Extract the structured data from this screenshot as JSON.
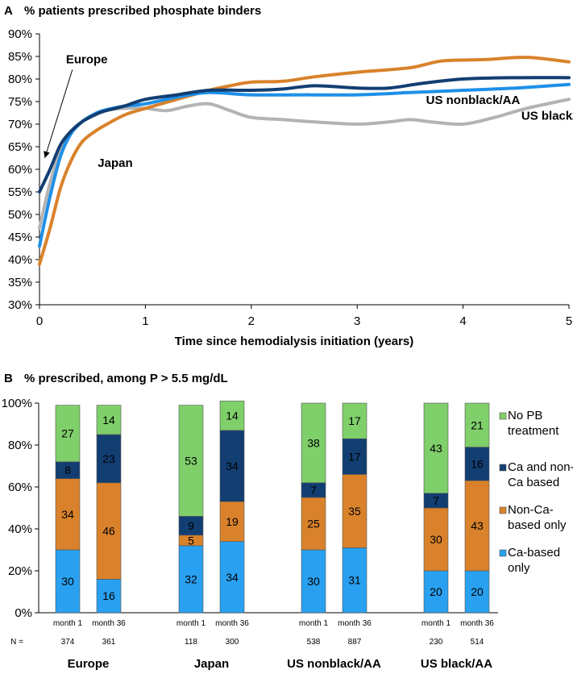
{
  "chart_data": [
    {
      "type": "line",
      "panel": "A",
      "title": "% patients prescribed phosphate binders",
      "xlabel": "Time since hemodialysis initiation (years)",
      "ylabel": "",
      "xlim": [
        0,
        5
      ],
      "ylim": [
        30,
        90
      ],
      "x_ticks": [
        "0",
        "1",
        "2",
        "3",
        "4",
        "5"
      ],
      "y_ticks": [
        "30%",
        "35%",
        "40%",
        "45%",
        "50%",
        "55%",
        "60%",
        "65%",
        "70%",
        "75%",
        "80%",
        "85%",
        "90%"
      ],
      "series": [
        {
          "name": "US black/AA",
          "color": "#b3b3b3",
          "points": [
            [
              0,
              47
            ],
            [
              0.1,
              57
            ],
            [
              0.2,
              64
            ],
            [
              0.3,
              68
            ],
            [
              0.4,
              70.5
            ],
            [
              0.5,
              72
            ],
            [
              0.6,
              73
            ],
            [
              0.8,
              73.5
            ],
            [
              1,
              73.5
            ],
            [
              1.2,
              73
            ],
            [
              1.4,
              74
            ],
            [
              1.6,
              74.5
            ],
            [
              1.8,
              73
            ],
            [
              2,
              71.5
            ],
            [
              2.3,
              71
            ],
            [
              2.6,
              70.5
            ],
            [
              3,
              70
            ],
            [
              3.3,
              70.5
            ],
            [
              3.5,
              71
            ],
            [
              3.7,
              70.5
            ],
            [
              4,
              70
            ],
            [
              4.3,
              71.5
            ],
            [
              4.6,
              73.5
            ],
            [
              5,
              75.5
            ]
          ]
        },
        {
          "name": "Japan",
          "color": "#d9822b",
          "points": [
            [
              0,
              39
            ],
            [
              0.1,
              47
            ],
            [
              0.2,
              56
            ],
            [
              0.3,
              62
            ],
            [
              0.4,
              66
            ],
            [
              0.5,
              68
            ],
            [
              0.6,
              69.5
            ],
            [
              0.8,
              72
            ],
            [
              1,
              73.5
            ],
            [
              1.3,
              75.5
            ],
            [
              1.6,
              77.5
            ],
            [
              1.8,
              78.5
            ],
            [
              2,
              79.3
            ],
            [
              2.3,
              79.5
            ],
            [
              2.6,
              80.5
            ],
            [
              3,
              81.5
            ],
            [
              3.5,
              82.5
            ],
            [
              3.8,
              84
            ],
            [
              4.2,
              84.3
            ],
            [
              4.6,
              84.8
            ],
            [
              5,
              83.8
            ]
          ]
        },
        {
          "name": "US nonblack/AA",
          "color": "#1e90e8",
          "points": [
            [
              0,
              43
            ],
            [
              0.1,
              54
            ],
            [
              0.2,
              63
            ],
            [
              0.3,
              68
            ],
            [
              0.4,
              70.5
            ],
            [
              0.5,
              72
            ],
            [
              0.6,
              73
            ],
            [
              0.8,
              74
            ],
            [
              1,
              74.5
            ],
            [
              1.3,
              76
            ],
            [
              1.6,
              77
            ],
            [
              2,
              76.5
            ],
            [
              2.5,
              76.5
            ],
            [
              3,
              76.5
            ],
            [
              3.5,
              77
            ],
            [
              4,
              77.5
            ],
            [
              4.5,
              78
            ],
            [
              5,
              78.8
            ]
          ]
        },
        {
          "name": "Europe",
          "color": "#123e72",
          "points": [
            [
              0,
              55
            ],
            [
              0.1,
              60
            ],
            [
              0.2,
              65.5
            ],
            [
              0.3,
              68.5
            ],
            [
              0.4,
              70.5
            ],
            [
              0.5,
              71.8
            ],
            [
              0.6,
              72.8
            ],
            [
              0.8,
              74
            ],
            [
              1,
              75.5
            ],
            [
              1.3,
              76.5
            ],
            [
              1.6,
              77.5
            ],
            [
              2,
              77.5
            ],
            [
              2.3,
              77.8
            ],
            [
              2.6,
              78.5
            ],
            [
              3,
              78
            ],
            [
              3.3,
              78
            ],
            [
              3.6,
              79
            ],
            [
              4,
              80
            ],
            [
              4.5,
              80.3
            ],
            [
              5,
              80.3
            ]
          ]
        }
      ],
      "annotations": [
        {
          "text": "Europe",
          "color": "#123e72",
          "at": [
            0.25,
            83.5
          ],
          "arrow_to": [
            0.05,
            62.5
          ]
        },
        {
          "text": "Japan",
          "color": "#d9822b",
          "at": [
            0.55,
            60.5
          ]
        },
        {
          "text": "US nonblack/AA",
          "color": "#1e90e8",
          "at": [
            3.65,
            74.5
          ]
        },
        {
          "text": "US black/AA",
          "color": "#b3b3b3",
          "at": [
            4.55,
            71
          ]
        }
      ]
    },
    {
      "type": "bar",
      "stacked": true,
      "panel": "B",
      "title": "% prescribed, among P > 5.5 mg/dL",
      "ylim": [
        0,
        100
      ],
      "y_ticks": [
        "0%",
        "20%",
        "40%",
        "60%",
        "80%",
        "100%"
      ],
      "n_label": "N =",
      "groups": [
        "Europe",
        "Japan",
        "US nonblack/AA",
        "US black/AA"
      ],
      "categories": [
        "month 1",
        "month 36",
        "month 1",
        "month 36",
        "month 1",
        "month 36",
        "month 1",
        "month 36"
      ],
      "n_values": [
        "374",
        "361",
        "118",
        "300",
        "538",
        "887",
        "230",
        "514"
      ],
      "series": [
        {
          "name": "Ca-based only",
          "color": "#29a0f0",
          "text_color": "#000000",
          "values": [
            30,
            16,
            32,
            34,
            30,
            31,
            20,
            20
          ]
        },
        {
          "name": "Non-Ca-based only",
          "color": "#d9822b",
          "text_color": "#000000",
          "values": [
            34,
            46,
            5,
            19,
            25,
            35,
            30,
            43
          ]
        },
        {
          "name": "Ca and non-Ca based",
          "color": "#123e72",
          "text_color": "#ffffff",
          "values": [
            8,
            23,
            9,
            34,
            7,
            17,
            7,
            16
          ]
        },
        {
          "name": "No PB treatment",
          "color": "#7fcf6a",
          "text_color": "#000000",
          "values": [
            27,
            14,
            53,
            14,
            38,
            17,
            43,
            21
          ]
        }
      ],
      "legend": [
        {
          "line1": "No PB",
          "line2": "treatment",
          "color": "#7fcf6a"
        },
        {
          "line1": "Ca and non-",
          "line2": "Ca based",
          "color": "#123e72"
        },
        {
          "line1": "Non-Ca-",
          "line2": "based only",
          "color": "#d9822b"
        },
        {
          "line1": "Ca-based",
          "line2": "only",
          "color": "#29a0f0"
        }
      ]
    }
  ]
}
